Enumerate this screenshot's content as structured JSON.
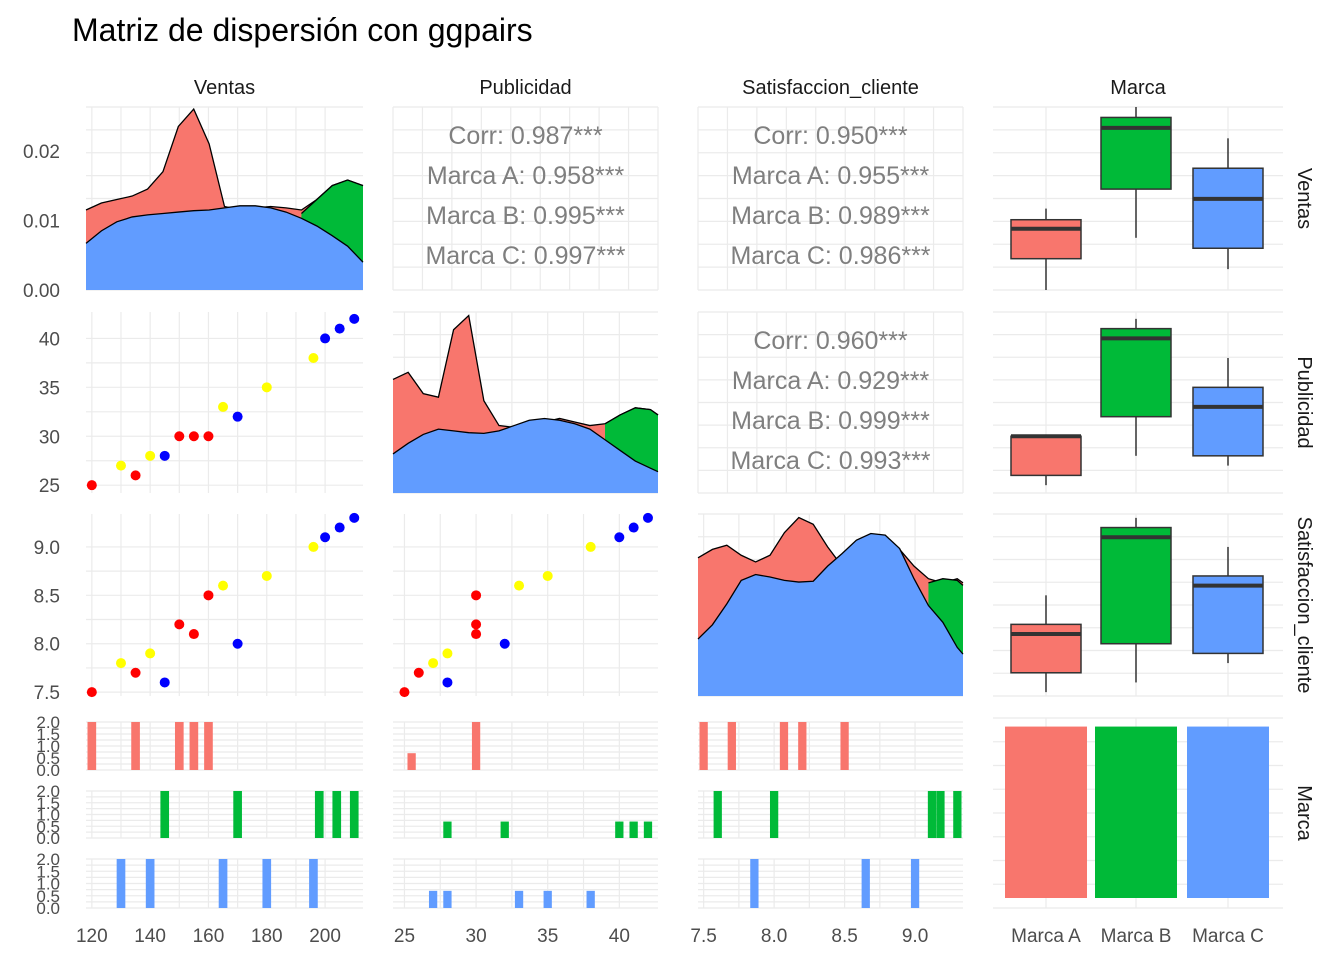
{
  "title": "Matriz de dispersión con ggpairs",
  "colors": {
    "Marca A": "#F8766D",
    "Marca B": "#00BA38",
    "Marca C": "#619CFF",
    "point_A": "#FF0000",
    "point_B": "#0000FF",
    "point_C": "#FFFF00",
    "grid": "#EBEBEB",
    "text": "#4D4D4D",
    "corr_text": "#7F7F7F"
  },
  "variables": [
    "Ventas",
    "Publicidad",
    "Satisfaccion_cliente",
    "Marca"
  ],
  "row_labels": [
    "Ventas",
    "Publicidad",
    "Satisfaccion_cliente",
    "Marca"
  ],
  "col_labels": [
    "Ventas",
    "Publicidad",
    "Satisfaccion_cliente",
    "Marca"
  ],
  "groups": [
    "Marca A",
    "Marca B",
    "Marca C"
  ],
  "correlations": [
    {
      "row": 0,
      "col": 1,
      "lines": [
        "Corr: 0.987***",
        "Marca A: 0.958***",
        "Marca B: 0.995***",
        "Marca C: 0.997***"
      ]
    },
    {
      "row": 0,
      "col": 2,
      "lines": [
        "Corr: 0.950***",
        "Marca A: 0.955***",
        "Marca B: 0.989***",
        "Marca C: 0.986***"
      ]
    },
    {
      "row": 1,
      "col": 2,
      "lines": [
        "Corr: 0.960***",
        "Marca A: 0.929***",
        "Marca B: 0.999***",
        "Marca C: 0.993***"
      ]
    }
  ],
  "chart_data": {
    "type": "scatter",
    "title": "Matriz de dispersión con ggpairs",
    "points": [
      {
        "ventas": 120,
        "publicidad": 25,
        "satisfaccion": 7.5,
        "color": "red",
        "marca": "Marca A"
      },
      {
        "ventas": 135,
        "publicidad": 26,
        "satisfaccion": 7.7,
        "color": "red",
        "marca": "Marca A"
      },
      {
        "ventas": 150,
        "publicidad": 30,
        "satisfaccion": 8.2,
        "color": "red",
        "marca": "Marca A"
      },
      {
        "ventas": 155,
        "publicidad": 30,
        "satisfaccion": 8.1,
        "color": "red",
        "marca": "Marca A"
      },
      {
        "ventas": 160,
        "publicidad": 30,
        "satisfaccion": 8.5,
        "color": "red",
        "marca": "Marca A"
      },
      {
        "ventas": 145,
        "publicidad": 28,
        "satisfaccion": 7.6,
        "color": "blue",
        "marca": "Marca B"
      },
      {
        "ventas": 170,
        "publicidad": 32,
        "satisfaccion": 8.0,
        "color": "blue",
        "marca": "Marca B"
      },
      {
        "ventas": 200,
        "publicidad": 40,
        "satisfaccion": 9.1,
        "color": "blue",
        "marca": "Marca B"
      },
      {
        "ventas": 205,
        "publicidad": 41,
        "satisfaccion": 9.2,
        "color": "blue",
        "marca": "Marca B"
      },
      {
        "ventas": 210,
        "publicidad": 42,
        "satisfaccion": 9.3,
        "color": "blue",
        "marca": "Marca B"
      },
      {
        "ventas": 130,
        "publicidad": 27,
        "satisfaccion": 7.8,
        "color": "yellow",
        "marca": "Marca C"
      },
      {
        "ventas": 140,
        "publicidad": 28,
        "satisfaccion": 7.9,
        "color": "yellow",
        "marca": "Marca C"
      },
      {
        "ventas": 165,
        "publicidad": 33,
        "satisfaccion": 8.6,
        "color": "yellow",
        "marca": "Marca C"
      },
      {
        "ventas": 180,
        "publicidad": 35,
        "satisfaccion": 8.7,
        "color": "yellow",
        "marca": "Marca C"
      },
      {
        "ventas": 196,
        "publicidad": 38,
        "satisfaccion": 9.0,
        "color": "yellow",
        "marca": "Marca C"
      }
    ],
    "axes": {
      "ventas": {
        "range": [
          118,
          213
        ],
        "ticks": [
          120,
          140,
          160,
          180,
          200
        ],
        "labels": [
          "120",
          "140",
          "160",
          "180",
          "200"
        ]
      },
      "publicidad": {
        "range": [
          24.2,
          42.7
        ],
        "ticks": [
          25,
          30,
          35,
          40
        ],
        "labels": [
          "25",
          "30",
          "35",
          "40"
        ]
      },
      "satisfaccion": {
        "range": [
          7.46,
          9.34
        ],
        "ticks": [
          7.5,
          8.0,
          8.5,
          9.0
        ],
        "labels": [
          "7.5",
          "8.0",
          "8.5",
          "9.0"
        ]
      },
      "density_ventas": {
        "range": [
          0,
          0.0263
        ],
        "ticks": [
          0,
          0.01,
          0.02
        ],
        "labels": [
          "0.00",
          "0.01",
          "0.02"
        ]
      },
      "count": {
        "range": [
          0,
          2
        ],
        "ticks": [
          0,
          0.5,
          1,
          1.5,
          2
        ],
        "labels": [
          "0.0",
          "0.5",
          "1.0",
          "1.5",
          "2.0"
        ]
      }
    },
    "boxplots": {
      "ventas": [
        {
          "marca": "Marca A",
          "min": 0.0,
          "q1": 0.0045,
          "median": 0.0088,
          "q3": 0.0101,
          "max": 0.0117
        },
        {
          "marca": "Marca B",
          "min": 0.0075,
          "q1": 0.0145,
          "median": 0.0233,
          "q3": 0.0248,
          "max": 0.0263
        },
        {
          "marca": "Marca C",
          "min": 0.003,
          "q1": 0.006,
          "median": 0.0131,
          "q3": 0.0175,
          "max": 0.0218
        }
      ],
      "publicidad": [
        {
          "marca": "Marca A",
          "min": 25,
          "q1": 26,
          "median": 30,
          "q3": 30,
          "max": 30
        },
        {
          "marca": "Marca B",
          "min": 28,
          "q1": 32,
          "median": 40,
          "q3": 41,
          "max": 42
        },
        {
          "marca": "Marca C",
          "min": 27,
          "q1": 28,
          "median": 33,
          "q3": 35,
          "max": 38
        }
      ],
      "satisfaccion": [
        {
          "marca": "Marca A",
          "min": 7.5,
          "q1": 7.7,
          "median": 8.1,
          "q3": 8.2,
          "max": 8.5
        },
        {
          "marca": "Marca B",
          "min": 7.6,
          "q1": 8.0,
          "median": 9.1,
          "q3": 9.2,
          "max": 9.3
        },
        {
          "marca": "Marca C",
          "min": 7.8,
          "q1": 7.9,
          "median": 8.6,
          "q3": 8.7,
          "max": 9.0
        }
      ]
    },
    "marca_counts": [
      {
        "marca": "Marca A",
        "count": 1
      },
      {
        "marca": "Marca B",
        "count": 1
      },
      {
        "marca": "Marca C",
        "count": 1
      }
    ],
    "densities": {
      "ventas": {
        "x": [
          120,
          125,
          130,
          135,
          140,
          145,
          150,
          155,
          160,
          165,
          170,
          175,
          180,
          185,
          190,
          195,
          200,
          205,
          210
        ],
        "red": [
          0.0115,
          0.0125,
          0.013,
          0.0135,
          0.0145,
          0.017,
          0.0235,
          0.026,
          0.021,
          0.012,
          0.0115,
          0.0118,
          0.012,
          0.0118,
          0.0115,
          0.013,
          0.015,
          0.0158,
          0.015
        ],
        "green": [
          0,
          0,
          0,
          0,
          0,
          0,
          0,
          0,
          0,
          0,
          0,
          0,
          0,
          0,
          0.011,
          0.013,
          0.015,
          0.0158,
          0.015
        ],
        "blue": [
          0.0067,
          0.0085,
          0.0098,
          0.0105,
          0.0108,
          0.011,
          0.0112,
          0.0114,
          0.0115,
          0.0118,
          0.0121,
          0.0121,
          0.0118,
          0.0112,
          0.0103,
          0.0092,
          0.0078,
          0.0063,
          0.004
        ]
      },
      "publicidad": {
        "x": [
          25,
          26,
          27,
          28,
          29,
          30,
          31,
          32,
          33,
          34,
          35,
          36,
          37,
          38,
          39,
          40,
          41,
          42,
          42.5
        ],
        "red": [
          0.032,
          0.034,
          0.028,
          0.027,
          0.046,
          0.05,
          0.026,
          0.019,
          0.0185,
          0.0195,
          0.02,
          0.021,
          0.02,
          0.019,
          0.0195,
          0.022,
          0.024,
          0.0235,
          0.022
        ],
        "green": [
          0,
          0,
          0,
          0,
          0,
          0,
          0,
          0,
          0,
          0,
          0,
          0,
          0,
          0,
          0.0195,
          0.022,
          0.024,
          0.0235,
          0.022
        ],
        "blue": [
          0.011,
          0.014,
          0.0165,
          0.018,
          0.0175,
          0.017,
          0.0168,
          0.0175,
          0.019,
          0.0205,
          0.021,
          0.0205,
          0.0195,
          0.018,
          0.015,
          0.012,
          0.009,
          0.007,
          0.006
        ]
      },
      "satisfaccion": {
        "x": [
          7.5,
          7.6,
          7.7,
          7.8,
          7.9,
          8.0,
          8.1,
          8.2,
          8.3,
          8.4,
          8.5,
          8.6,
          8.7,
          8.8,
          8.9,
          9.0,
          9.1,
          9.2,
          9.3,
          9.34
        ],
        "red": [
          0.0165,
          0.0175,
          0.018,
          0.0168,
          0.016,
          0.0168,
          0.0195,
          0.0213,
          0.0205,
          0.0178,
          0.0155,
          0.0162,
          0.0175,
          0.0185,
          0.0175,
          0.0155,
          0.014,
          0.0135,
          0.014,
          0.0135
        ],
        "green": [
          0,
          0,
          0,
          0,
          0,
          0,
          0,
          0,
          0,
          0,
          0,
          0,
          0,
          0,
          0,
          0,
          0.0135,
          0.014,
          0.0138,
          0.0132
        ],
        "blue": [
          0.0068,
          0.0085,
          0.011,
          0.0138,
          0.0145,
          0.0142,
          0.0138,
          0.0136,
          0.0137,
          0.0155,
          0.017,
          0.0186,
          0.0194,
          0.0192,
          0.0176,
          0.014,
          0.0108,
          0.0088,
          0.0058,
          0.005
        ]
      }
    },
    "histograms": {
      "ventas": {
        "Marca A": [
          {
            "x": 120,
            "count": 2
          },
          {
            "x": 135,
            "count": 2
          },
          {
            "x": 150,
            "count": 2
          },
          {
            "x": 155,
            "count": 2
          },
          {
            "x": 160,
            "count": 2
          }
        ],
        "Marca B": [
          {
            "x": 145,
            "count": 2
          },
          {
            "x": 170,
            "count": 2
          },
          {
            "x": 198,
            "count": 2
          },
          {
            "x": 204,
            "count": 2
          },
          {
            "x": 210,
            "count": 2
          }
        ],
        "Marca C": [
          {
            "x": 130,
            "count": 2
          },
          {
            "x": 140,
            "count": 2
          },
          {
            "x": 165,
            "count": 2
          },
          {
            "x": 180,
            "count": 2
          },
          {
            "x": 196,
            "count": 2
          }
        ]
      },
      "publicidad": {
        "Marca A": [
          {
            "x": 25.5,
            "count": 0.7
          },
          {
            "x": 30,
            "count": 2
          }
        ],
        "Marca B": [
          {
            "x": 28,
            "count": 0.7
          },
          {
            "x": 32,
            "count": 0.7
          },
          {
            "x": 40,
            "count": 0.7
          },
          {
            "x": 41,
            "count": 0.7
          },
          {
            "x": 42,
            "count": 0.7
          }
        ],
        "Marca C": [
          {
            "x": 27,
            "count": 0.7
          },
          {
            "x": 28,
            "count": 0.7
          },
          {
            "x": 33,
            "count": 0.7
          },
          {
            "x": 35,
            "count": 0.7
          },
          {
            "x": 38,
            "count": 0.7
          }
        ]
      },
      "satisfaccion": {
        "Marca A": [
          {
            "x": 7.5,
            "count": 2
          },
          {
            "x": 7.7,
            "count": 2
          },
          {
            "x": 8.07,
            "count": 2
          },
          {
            "x": 8.2,
            "count": 2
          },
          {
            "x": 8.5,
            "count": 2
          }
        ],
        "Marca B": [
          {
            "x": 7.6,
            "count": 2
          },
          {
            "x": 8.0,
            "count": 2
          },
          {
            "x": 9.12,
            "count": 2
          },
          {
            "x": 9.18,
            "count": 2
          },
          {
            "x": 9.3,
            "count": 2
          }
        ],
        "Marca C": [
          {
            "x": 7.86,
            "count": 2
          },
          {
            "x": 8.65,
            "count": 2
          },
          {
            "x": 9.0,
            "count": 2
          }
        ]
      }
    }
  }
}
